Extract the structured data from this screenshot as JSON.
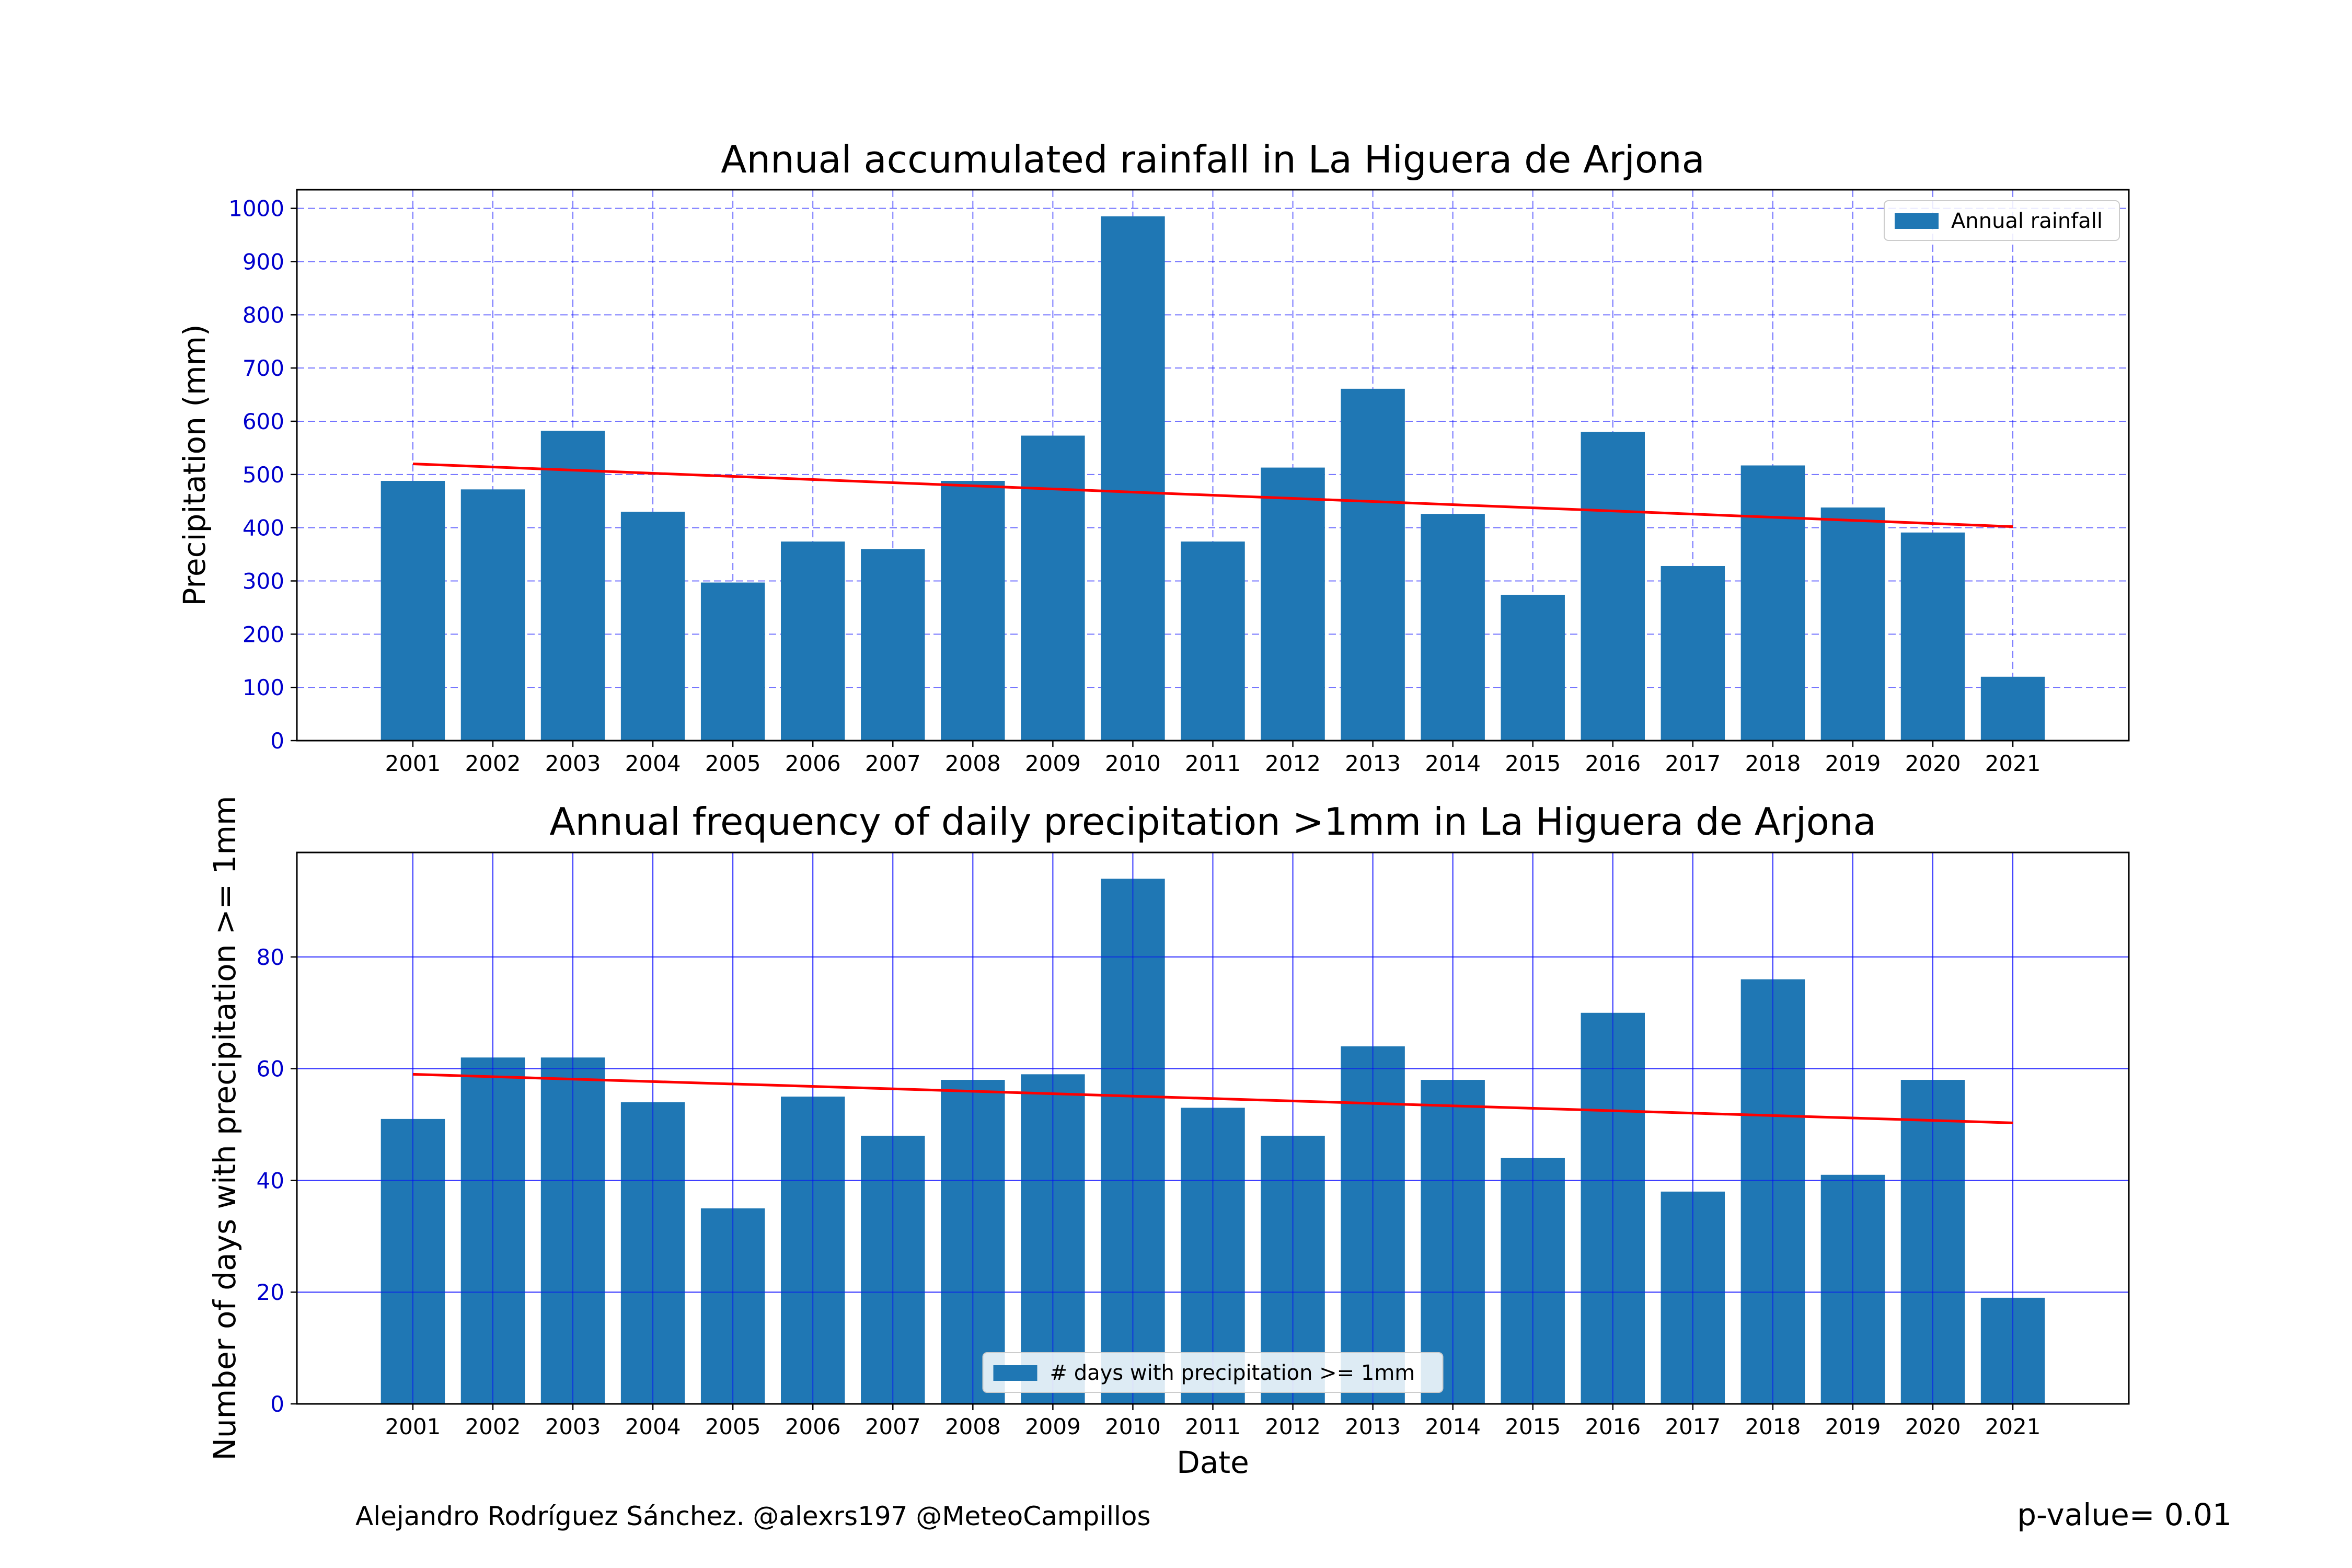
{
  "chart_data": [
    {
      "type": "bar",
      "title": "Annual accumulated rainfall in La Higuera de Arjona",
      "xlabel": "",
      "ylabel": "Precipitation (mm)",
      "categories": [
        "2001",
        "2002",
        "2003",
        "2004",
        "2005",
        "2006",
        "2007",
        "2008",
        "2009",
        "2010",
        "2011",
        "2012",
        "2013",
        "2014",
        "2015",
        "2016",
        "2017",
        "2018",
        "2019",
        "2020",
        "2021"
      ],
      "series": [
        {
          "name": "Annual rainfall",
          "color": "#1f77b4",
          "values": [
            488,
            472,
            582,
            430,
            297,
            374,
            360,
            488,
            573,
            985,
            374,
            513,
            661,
            426,
            274,
            580,
            328,
            517,
            438,
            391,
            120
          ]
        }
      ],
      "trend": {
        "color": "#ff0000",
        "start": 520,
        "end": 402
      },
      "ylim": [
        0,
        1035
      ],
      "yticks": [
        "0",
        "100",
        "200",
        "300",
        "400",
        "500",
        "600",
        "700",
        "800",
        "900",
        "1000"
      ],
      "grid": {
        "on": true,
        "style": "dashed",
        "color": "#0000ff"
      },
      "legend": "top-right",
      "tick_color": "#0000cc"
    },
    {
      "type": "bar",
      "title": "Annual frequency of daily precipitation >1mm in La Higuera de Arjona",
      "xlabel": "Date",
      "ylabel": "Number of days with precipitation >= 1mm",
      "categories": [
        "2001",
        "2002",
        "2003",
        "2004",
        "2005",
        "2006",
        "2007",
        "2008",
        "2009",
        "2010",
        "2011",
        "2012",
        "2013",
        "2014",
        "2015",
        "2016",
        "2017",
        "2018",
        "2019",
        "2020",
        "2021"
      ],
      "series": [
        {
          "name": "# days with precipitation >= 1mm",
          "color": "#1f77b4",
          "values": [
            51,
            62,
            62,
            54,
            35,
            55,
            48,
            58,
            59,
            94,
            53,
            48,
            64,
            58,
            44,
            70,
            38,
            76,
            41,
            58,
            19
          ]
        }
      ],
      "trend": {
        "color": "#ff0000",
        "start": 59,
        "end": 50.3
      },
      "ylim": [
        0,
        98.7
      ],
      "yticks": [
        "0",
        "20",
        "40",
        "60",
        "80"
      ],
      "grid": {
        "on": true,
        "style": "solid",
        "color": "#0000ff"
      },
      "legend": "bottom-center",
      "tick_color": "#0000cc"
    }
  ],
  "footer": {
    "credit": "Alejandro Rodríguez Sánchez. @alexrs197 @MeteoCampillos",
    "pvalue": "p-value= 0.01"
  }
}
